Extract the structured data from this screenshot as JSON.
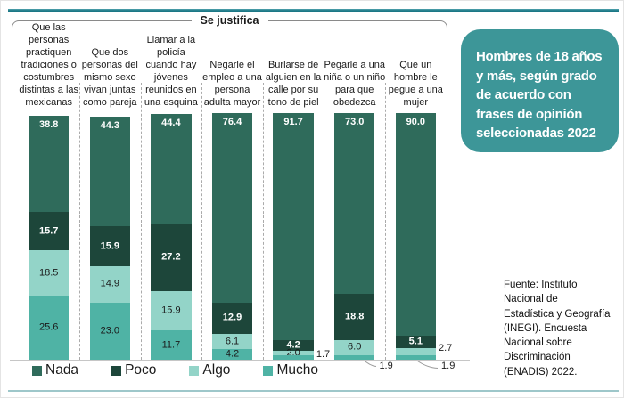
{
  "header": {
    "bracket_label": "Se justifica"
  },
  "title_box": {
    "text": "Hombres de 18 años\ny más, según grado\nde acuerdo con\nfrases de opinión\nseleccionadas 2022",
    "bg_color": "#3D9698",
    "text_color": "#FFFFFF"
  },
  "source_note": {
    "text": "Fuente: Instituto\nNacional de\nEstadística y Geografía\n(INEGI). Encuesta\nNacional sobre\nDiscriminación\n(ENADIS) 2022."
  },
  "chart_data": {
    "type": "bar",
    "variant": "stacked-percent-column",
    "title": "Hombres de 18 años y más, según grado de acuerdo con frases de opinión seleccionadas 2022",
    "group_header": "Se justifica",
    "ylim": [
      0,
      100
    ],
    "grid": false,
    "legend_position": "bottom",
    "categories": [
      "Que las\npersonas\npractiquen\ntradiciones o\ncostumbres\ndistintas a las\nmexicanas",
      "Que dos\npersonas del\nmismo sexo\nvivan juntas\ncomo pareja",
      "Llamar a la\npolicía\ncuando hay\njóvenes\nreunidos en\nuna esquina",
      "Negarle el\nempleo a una\npersona\nadulta mayor",
      "Burlarse de\nalguien en la\ncalle por su\ntono de piel",
      "Pegarle a una\nniña o un niño\npara que\nobedezca",
      "Que un\nhombre le\npegue a una\nmujer"
    ],
    "series": [
      {
        "name": "Nada",
        "color": "#2F6B5B",
        "label_color": "#FFFFFF",
        "values": [
          38.8,
          44.3,
          44.4,
          76.4,
          91.7,
          73.0,
          90.0
        ]
      },
      {
        "name": "Poco",
        "color": "#1D463A",
        "label_color": "#FFFFFF",
        "values": [
          15.7,
          15.9,
          27.2,
          12.9,
          4.2,
          18.8,
          5.1
        ]
      },
      {
        "name": "Algo",
        "color": "#93D4C8",
        "label_color": "#1A1A1A",
        "values": [
          18.5,
          14.9,
          15.9,
          6.1,
          2.0,
          6.0,
          2.7
        ]
      },
      {
        "name": "Mucho",
        "color": "#4FB3A5",
        "label_color": "#1A1A1A",
        "values": [
          25.6,
          23.0,
          11.7,
          4.2,
          1.7,
          1.9,
          1.9
        ]
      }
    ],
    "outside_labels": [
      {
        "bar": 4,
        "series": "Mucho",
        "placement": "right"
      },
      {
        "bar": 5,
        "series": "Mucho",
        "placement": "below"
      },
      {
        "bar": 6,
        "series": "Algo",
        "placement": "right"
      },
      {
        "bar": 6,
        "series": "Mucho",
        "placement": "below"
      }
    ],
    "legend": [
      "Nada",
      "Poco",
      "Algo",
      "Mucho"
    ]
  }
}
